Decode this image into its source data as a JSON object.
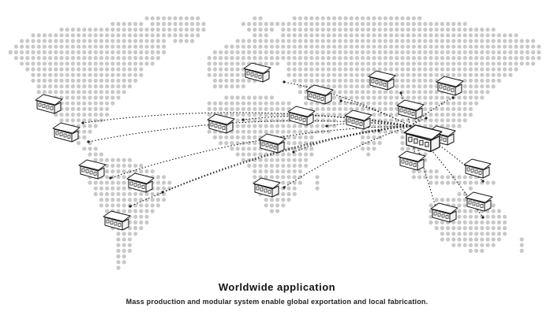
{
  "caption": {
    "title": "Worldwide application",
    "subtitle": "Mass production and modular system enable global exportation and local fabrication."
  },
  "colors": {
    "land_dot": "#c8c8c8",
    "route": "#222222",
    "house_stroke": "#1a1a1a",
    "house_fill": "#ffffff"
  },
  "map": {
    "hub": "china-east-asia",
    "destinations": [
      "alaska-canada",
      "usa",
      "central-america",
      "brazil",
      "south-america-east",
      "argentina-chile",
      "western-europe",
      "north-africa",
      "central-africa",
      "southern-africa",
      "eastern-europe",
      "middle-east",
      "russia",
      "india",
      "korea-japan-north",
      "japan",
      "southeast-asia",
      "indonesia",
      "new-guinea",
      "australia-west",
      "australia-east",
      "pacific-islands"
    ]
  }
}
